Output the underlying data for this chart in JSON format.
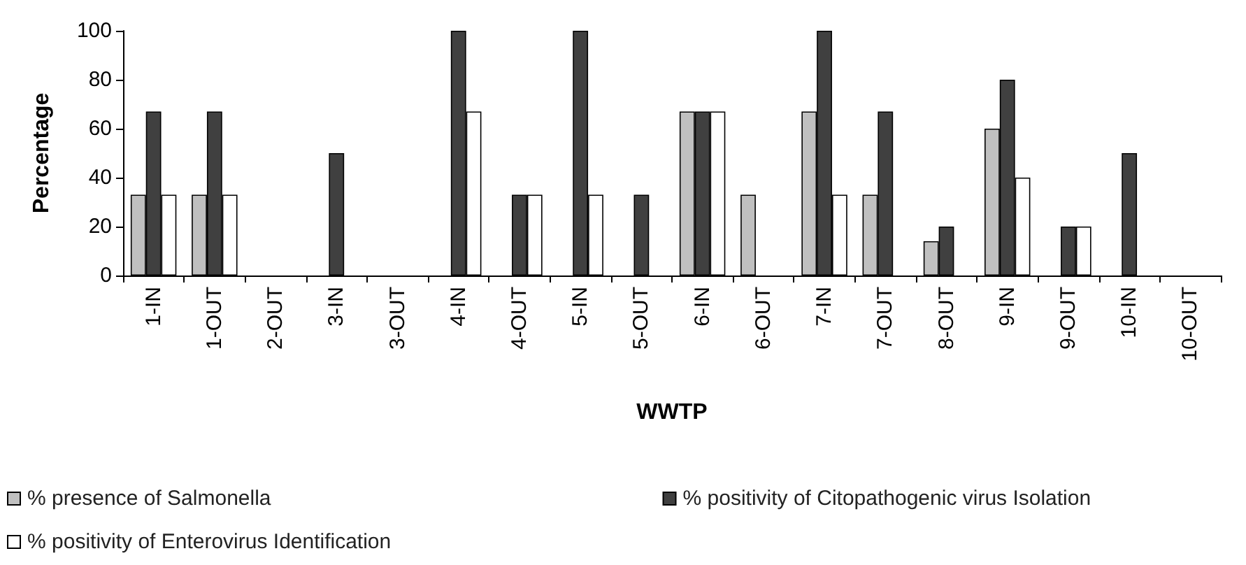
{
  "chart_data": {
    "type": "bar",
    "xlabel": "WWTP",
    "ylabel": "Percentage",
    "categories": [
      "1-IN",
      "1-OUT",
      "2-OUT",
      "3-IN",
      "3-OUT",
      "4-IN",
      "4-OUT",
      "5-IN",
      "5-OUT",
      "6-IN",
      "6-OUT",
      "7-IN",
      "7-OUT",
      "8-OUT",
      "9-IN",
      "9-OUT",
      "10-IN",
      "10-OUT"
    ],
    "series": [
      {
        "name": "% presence of Salmonella",
        "color": "#c0c0c0",
        "values": [
          33,
          33,
          0,
          0,
          0,
          0,
          0,
          0,
          0,
          67,
          33,
          67,
          33,
          14,
          60,
          0,
          0,
          0
        ]
      },
      {
        "name": "% positivity of Citopathogenic virus Isolation",
        "color": "#404040",
        "values": [
          67,
          67,
          0,
          50,
          0,
          100,
          33,
          100,
          33,
          67,
          0,
          100,
          67,
          20,
          80,
          20,
          50,
          0
        ]
      },
      {
        "name": "% positivity of Enterovirus Identification",
        "color": "#ffffff",
        "values": [
          33,
          33,
          0,
          0,
          0,
          67,
          33,
          33,
          0,
          67,
          0,
          33,
          0,
          0,
          40,
          20,
          0,
          0
        ]
      }
    ],
    "ylim": [
      0,
      100
    ],
    "yticks": [
      0,
      20,
      40,
      60,
      80,
      100
    ],
    "grid": false,
    "legend": "bottom"
  }
}
